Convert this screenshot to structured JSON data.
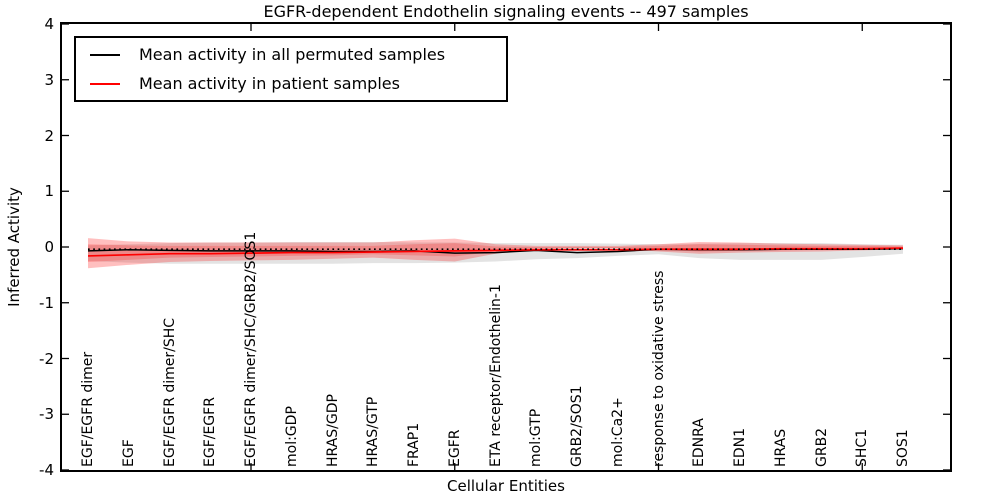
{
  "title": "EGFR-dependent Endothelin signaling events -- 497 samples",
  "legend": {
    "items": [
      {
        "label": "Mean activity in all permuted samples",
        "color": "#000000"
      },
      {
        "label": "Mean activity in patient samples",
        "color": "#ff0000"
      }
    ]
  },
  "axes": {
    "ylabel": "Inferred Activity",
    "xlabel": "Cellular Entities"
  },
  "chart_data": {
    "type": "line",
    "title": "EGFR-dependent Endothelin signaling events -- 497 samples",
    "xlabel": "Cellular Entities",
    "ylabel": "Inferred Activity",
    "ylim": [
      -4,
      4
    ],
    "yticks": [
      -4,
      -3,
      -2,
      -1,
      0,
      1,
      2,
      3,
      4
    ],
    "xtick_positions": [
      5,
      10,
      15,
      20
    ],
    "grid": false,
    "legend_position": "upper left",
    "categories": [
      "EGF/EGFR dimer",
      "EGF",
      "EGF/EGFR dimer/SHC",
      "EGF/EGFR",
      "EGF/EGFR dimer/SHC/GRB2/SOS1",
      "mol:GDP",
      "HRAS/GDP",
      "HRAS/GTP",
      "FRAP1",
      "EGFR",
      "ETA receptor/Endothelin-1",
      "mol:GTP",
      "GRB2/SOS1",
      "mol:Ca2+",
      "response to oxidative stress",
      "EDNRA",
      "EDN1",
      "HRAS",
      "GRB2",
      "SHC1",
      "SOS1"
    ],
    "series": [
      {
        "name": "Mean activity in all permuted samples",
        "color": "#000000",
        "style": "solid",
        "width": 1.5,
        "values": [
          -0.07,
          -0.05,
          -0.06,
          -0.07,
          -0.07,
          -0.07,
          -0.08,
          -0.08,
          -0.07,
          -0.11,
          -0.1,
          -0.06,
          -0.1,
          -0.08,
          -0.04,
          -0.05,
          -0.05,
          -0.04,
          -0.04,
          -0.04,
          -0.03
        ]
      },
      {
        "name": "Mean activity in patient samples",
        "color": "#ff0000",
        "style": "solid",
        "width": 1.7,
        "values": [
          -0.16,
          -0.14,
          -0.12,
          -0.12,
          -0.11,
          -0.1,
          -0.1,
          -0.09,
          -0.08,
          -0.07,
          -0.06,
          -0.05,
          -0.05,
          -0.05,
          -0.04,
          -0.04,
          -0.04,
          -0.03,
          -0.03,
          -0.03,
          -0.02
        ]
      },
      {
        "name": "dotted reference near zero",
        "color": "#000000",
        "style": "dotted",
        "width": 1.6,
        "values": [
          -0.04,
          -0.04,
          -0.04,
          -0.04,
          -0.04,
          -0.04,
          -0.04,
          -0.04,
          -0.04,
          -0.04,
          -0.04,
          -0.04,
          -0.04,
          -0.04,
          -0.04,
          -0.04,
          -0.04,
          -0.04,
          -0.04,
          -0.04,
          -0.04
        ]
      }
    ],
    "bands": [
      {
        "name": "permuted-samples-range",
        "color": "#000000",
        "opacity": 0.11,
        "upper": [
          0.03,
          0.05,
          0.07,
          0.08,
          0.08,
          0.09,
          0.09,
          0.09,
          0.08,
          0.08,
          0.07,
          0.07,
          0.07,
          0.06,
          0.05,
          0.06,
          0.07,
          0.07,
          0.07,
          0.05,
          0.04
        ],
        "lower": [
          -0.25,
          -0.28,
          -0.3,
          -0.3,
          -0.3,
          -0.3,
          -0.3,
          -0.29,
          -0.29,
          -0.28,
          -0.26,
          -0.22,
          -0.2,
          -0.16,
          -0.13,
          -0.2,
          -0.23,
          -0.23,
          -0.23,
          -0.18,
          -0.12
        ]
      },
      {
        "name": "patient-samples-range-outer",
        "color": "#ff0000",
        "opacity": 0.25,
        "upper": [
          0.16,
          0.1,
          0.08,
          0.08,
          0.08,
          0.08,
          0.08,
          0.08,
          0.12,
          0.15,
          0.05,
          0.02,
          0.02,
          0.02,
          0.05,
          0.09,
          0.08,
          0.06,
          0.05,
          0.04,
          0.03
        ],
        "lower": [
          -0.38,
          -0.32,
          -0.27,
          -0.25,
          -0.24,
          -0.23,
          -0.21,
          -0.19,
          -0.23,
          -0.26,
          -0.12,
          -0.04,
          -0.03,
          -0.03,
          -0.08,
          -0.12,
          -0.1,
          -0.09,
          -0.08,
          -0.06,
          -0.04
        ]
      },
      {
        "name": "patient-samples-range-inner",
        "color": "#ff0000",
        "opacity": 0.2,
        "upper": [
          0.05,
          0.03,
          0.02,
          0.02,
          0.02,
          0.02,
          0.02,
          0.02,
          0.05,
          0.07,
          0.01,
          0.0,
          0.0,
          0.0,
          0.02,
          0.05,
          0.04,
          0.03,
          0.02,
          0.02,
          0.01
        ],
        "lower": [
          -0.27,
          -0.23,
          -0.19,
          -0.18,
          -0.17,
          -0.16,
          -0.15,
          -0.13,
          -0.15,
          -0.17,
          -0.08,
          -0.03,
          -0.02,
          -0.02,
          -0.05,
          -0.08,
          -0.07,
          -0.06,
          -0.05,
          -0.04,
          -0.03
        ]
      }
    ]
  }
}
